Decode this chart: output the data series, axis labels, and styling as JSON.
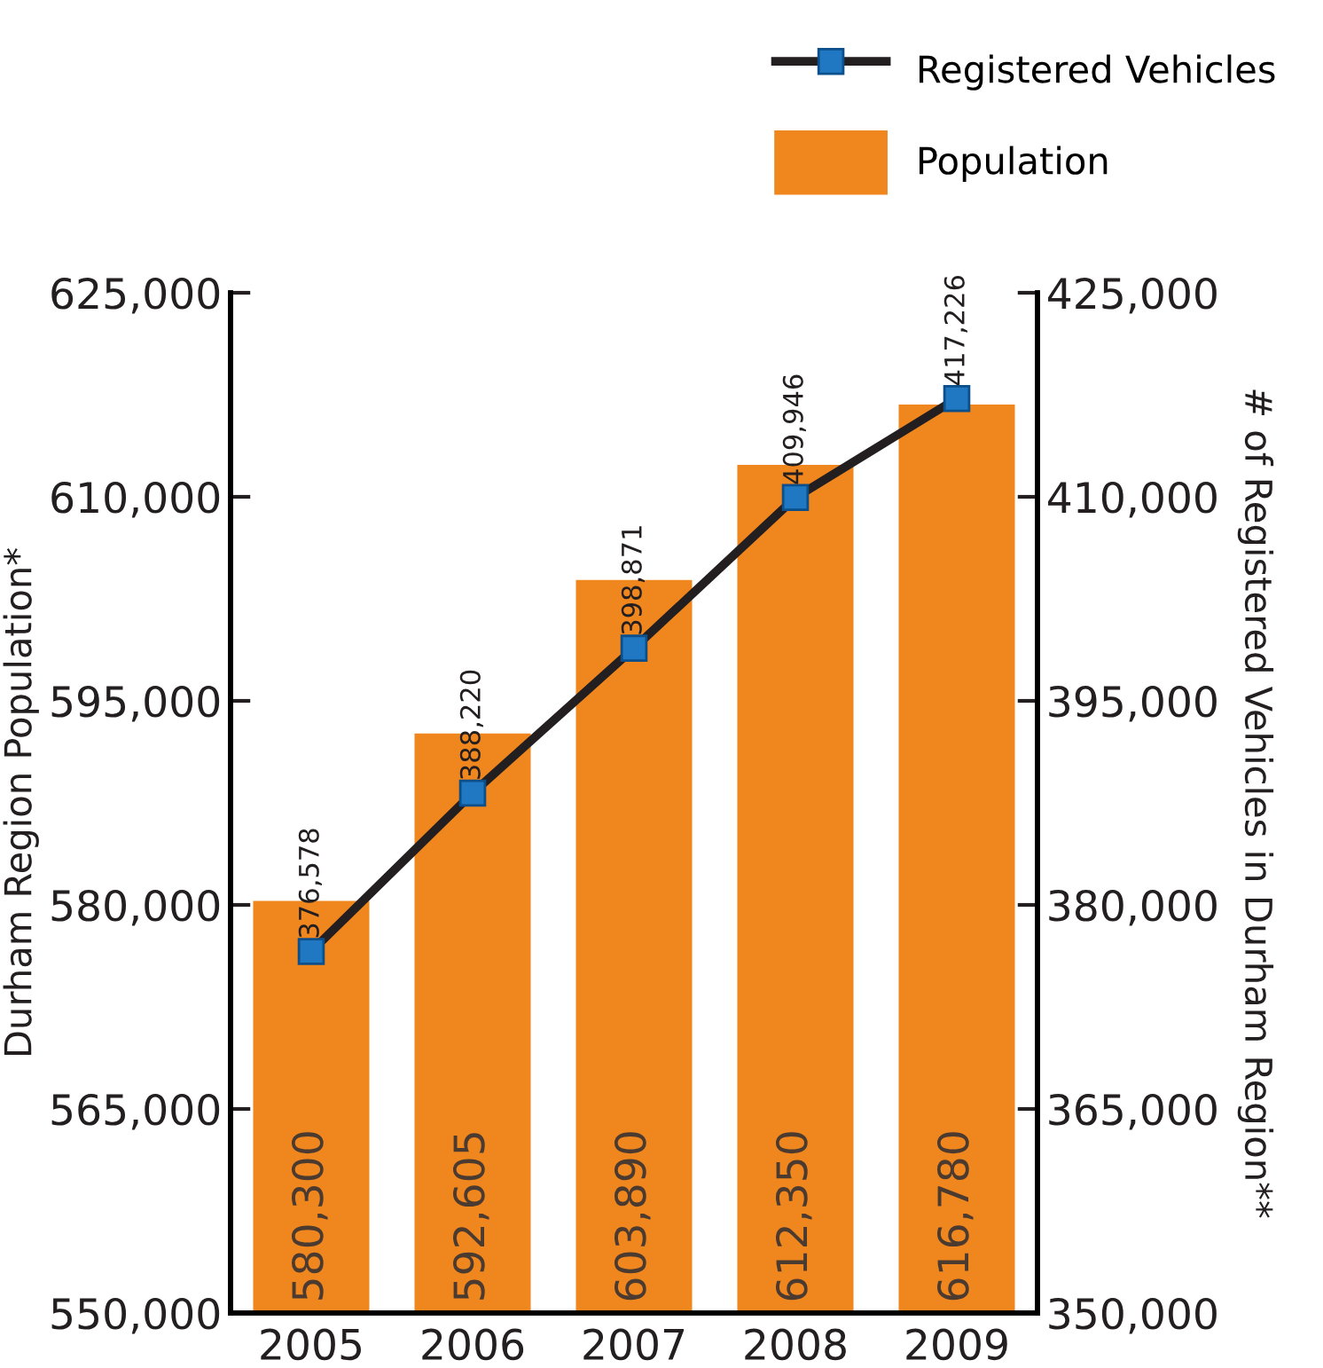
{
  "chart_data": {
    "type": "bar",
    "ylabel": "Durham Region Population*",
    "y2label": "# of Registered Vehicles in Durham Region**",
    "categories": [
      "2005",
      "2006",
      "2007",
      "2008",
      "2009"
    ],
    "series": [
      {
        "name": "Registered Vehicles",
        "type": "line",
        "axis": "y2",
        "color": "#231f20",
        "values": [
          376578,
          388220,
          398871,
          409946,
          417226
        ],
        "value_labels": [
          "376,578",
          "388,220",
          "398,871",
          "409,946",
          "417,226"
        ]
      },
      {
        "name": "Population",
        "color": "#f0871e",
        "values": [
          580300,
          592605,
          603890,
          612350,
          616780
        ],
        "value_labels": [
          "580,300",
          "592,605",
          "603,890",
          "612,350",
          "616,780"
        ]
      }
    ],
    "ylim": [
      550000,
      625000
    ],
    "yticks": [
      {
        "value": 550000,
        "label": "550,000"
      },
      {
        "value": 565000,
        "label": "565,000"
      },
      {
        "value": 580000,
        "label": "580,000"
      },
      {
        "value": 595000,
        "label": "595,000"
      },
      {
        "value": 610000,
        "label": "610,000"
      },
      {
        "value": 625000,
        "label": "625,000"
      }
    ],
    "y2lim": [
      350000,
      425000
    ],
    "y2ticks": [
      {
        "value": 350000,
        "label": "350,000"
      },
      {
        "value": 365000,
        "label": "365,000"
      },
      {
        "value": 380000,
        "label": "380,000"
      },
      {
        "value": 395000,
        "label": "395,000"
      },
      {
        "value": 410000,
        "label": "410,000"
      },
      {
        "value": 425000,
        "label": "425,000"
      }
    ],
    "legend": "top right",
    "marker": "square",
    "line_style": "solid",
    "grid": false
  }
}
